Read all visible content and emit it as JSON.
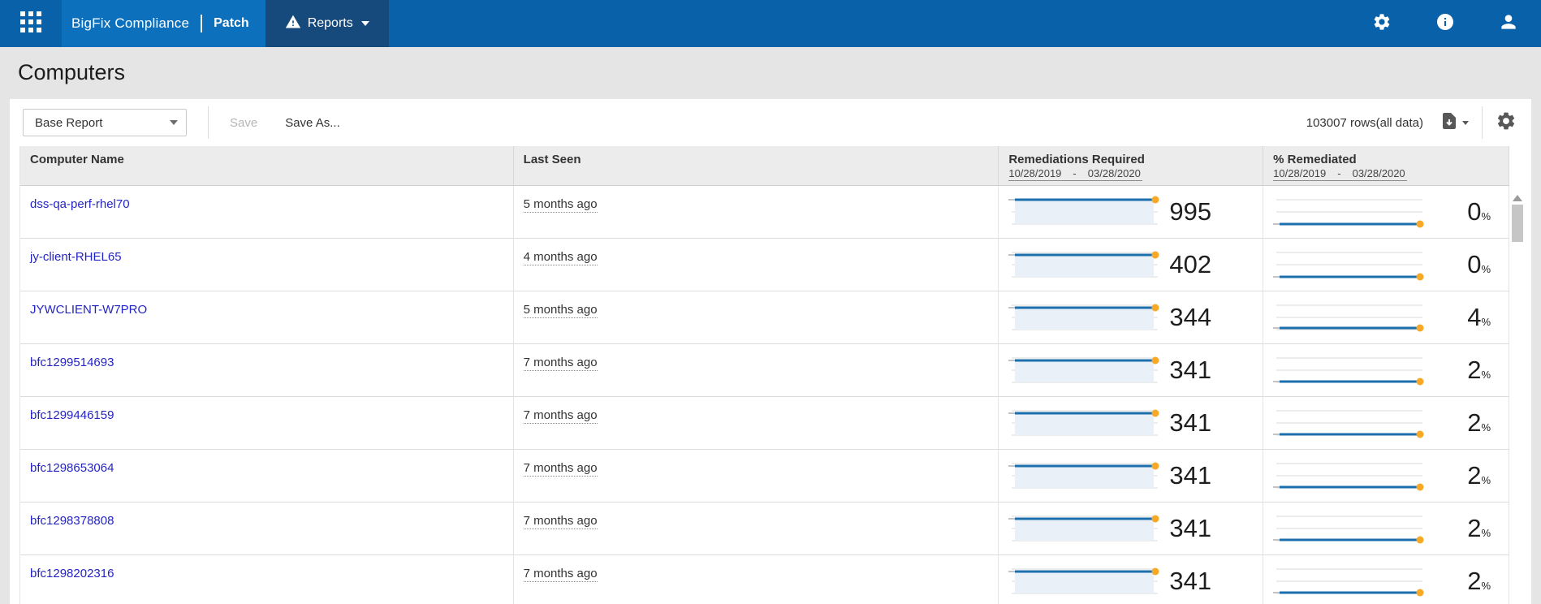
{
  "colors": {
    "topbar_bg": "#0961a9",
    "brand_bg": "#0c70bd",
    "reports_bg": "#164a7c",
    "link": "#2424c4",
    "spark_line": "#1c6fad",
    "spark_dot": "#f7a825",
    "spark_fill": "#e9f0f8",
    "grid_line": "#d8d8d8"
  },
  "topbar": {
    "brand": "BigFix Compliance",
    "section": "Patch",
    "reports_label": "Reports",
    "icons": [
      "app-launcher-grid",
      "warning-triangle",
      "gear",
      "info",
      "user"
    ]
  },
  "page": {
    "title": "Computers"
  },
  "toolbar": {
    "report_select_value": "Base Report",
    "save_label": "Save",
    "save_as_label": "Save As...",
    "row_count_label": "103007 rows(all data)"
  },
  "table": {
    "columns": [
      {
        "label": "Computer Name"
      },
      {
        "label": "Last Seen"
      },
      {
        "label": "Remediations Required",
        "date_from": "10/28/2019",
        "date_to": "03/28/2020"
      },
      {
        "label": "% Remediated",
        "date_from": "10/28/2019",
        "date_to": "03/28/2020"
      }
    ],
    "rows": [
      {
        "computer_name": "dss-qa-perf-rhel70",
        "last_seen": "5 months ago",
        "remediations_required": 995,
        "pct_remediated": 0
      },
      {
        "computer_name": "jy-client-RHEL65",
        "last_seen": "4 months ago",
        "remediations_required": 402,
        "pct_remediated": 0
      },
      {
        "computer_name": "JYWCLIENT-W7PRO",
        "last_seen": "5 months ago",
        "remediations_required": 344,
        "pct_remediated": 4
      },
      {
        "computer_name": "bfc1299514693",
        "last_seen": "7 months ago",
        "remediations_required": 341,
        "pct_remediated": 2
      },
      {
        "computer_name": "bfc1299446159",
        "last_seen": "7 months ago",
        "remediations_required": 341,
        "pct_remediated": 2
      },
      {
        "computer_name": "bfc1298653064",
        "last_seen": "7 months ago",
        "remediations_required": 341,
        "pct_remediated": 2
      },
      {
        "computer_name": "bfc1298378808",
        "last_seen": "7 months ago",
        "remediations_required": 341,
        "pct_remediated": 2
      },
      {
        "computer_name": "bfc1298202316",
        "last_seen": "7 months ago",
        "remediations_required": 341,
        "pct_remediated": 2
      }
    ]
  }
}
